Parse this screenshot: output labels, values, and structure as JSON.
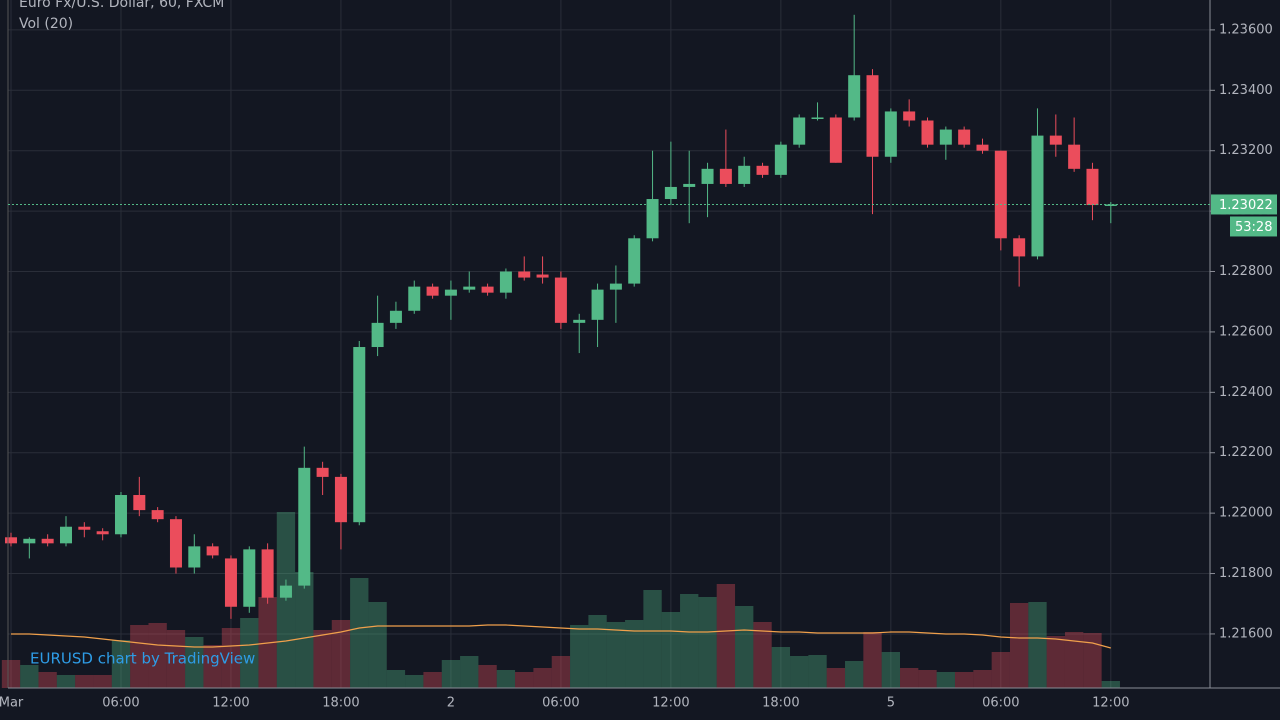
{
  "chart_data": {
    "type": "candlestick",
    "title": "Euro Fx/U.S. Dollar, 60, FXCM",
    "volume_title": "Vol (20)",
    "watermark": "EURUSD chart by TradingView",
    "categories": [
      "Mar",
      null,
      null,
      null,
      null,
      null,
      "06:00",
      null,
      null,
      null,
      null,
      null,
      "12:00",
      null,
      null,
      null,
      null,
      null,
      "18:00",
      null,
      null,
      null,
      null,
      null,
      "2",
      null,
      null,
      null,
      null,
      null,
      "06:00",
      null,
      null,
      null,
      null,
      null,
      "12:00",
      null,
      null,
      null,
      null,
      null,
      "18:00",
      null,
      null,
      null,
      null,
      null,
      "5",
      null,
      null,
      null,
      null,
      null,
      "06:00",
      null,
      null,
      null,
      null,
      null,
      "12:00"
    ],
    "open": [
      1.2192,
      1.219,
      1.21915,
      1.219,
      1.21955,
      1.2194,
      1.2193,
      1.2206,
      1.2201,
      1.2198,
      1.2182,
      1.2189,
      1.2185,
      1.2169,
      1.2188,
      1.2172,
      1.2176,
      1.2215,
      1.2212,
      1.2197,
      1.2255,
      1.2263,
      1.2267,
      1.2275,
      1.2272,
      1.2274,
      1.2275,
      1.2273,
      1.228,
      1.2279,
      1.2278,
      1.2263,
      1.2264,
      1.2274,
      1.2276,
      1.2291,
      1.2304,
      1.2308,
      1.2309,
      1.2314,
      1.2309,
      1.2315,
      1.2312,
      1.2322,
      1.23305,
      1.2331,
      1.2331,
      1.2345,
      1.2318,
      1.2333,
      1.233,
      1.2322,
      1.2327,
      1.2322,
      1.232,
      1.2291,
      1.2285,
      1.2325,
      1.2322,
      1.2314,
      1.2302
    ],
    "high": [
      1.21935,
      1.2192,
      1.2193,
      1.2199,
      1.2197,
      1.2195,
      1.2207,
      1.2212,
      1.2202,
      1.2199,
      1.2193,
      1.219,
      1.2186,
      1.2189,
      1.219,
      1.2178,
      1.2222,
      1.2217,
      1.2213,
      1.2257,
      1.2272,
      1.227,
      1.2277,
      1.2276,
      1.2277,
      1.228,
      1.2276,
      1.2281,
      1.2285,
      1.2285,
      1.228,
      1.2266,
      1.2276,
      1.2282,
      1.2292,
      1.232,
      1.2323,
      1.232,
      1.2316,
      1.2327,
      1.2318,
      1.2316,
      1.2323,
      1.2332,
      1.2336,
      1.2332,
      1.2365,
      1.2347,
      1.2334,
      1.2337,
      1.2331,
      1.2328,
      1.2328,
      1.2324,
      1.232,
      1.2292,
      1.2334,
      1.2332,
      1.2331,
      1.2316,
      1.2303
    ],
    "low": [
      1.2189,
      1.2185,
      1.2189,
      1.2189,
      1.2192,
      1.2191,
      1.2192,
      1.2199,
      1.2197,
      1.218,
      1.218,
      1.2185,
      1.2165,
      1.2167,
      1.217,
      1.2171,
      1.2175,
      1.2206,
      1.2188,
      1.2196,
      1.2252,
      1.2261,
      1.2266,
      1.2271,
      1.2264,
      1.2273,
      1.2272,
      1.2271,
      1.2277,
      1.2276,
      1.2261,
      1.2253,
      1.2255,
      1.2263,
      1.2275,
      1.229,
      1.2302,
      1.2296,
      1.2298,
      1.2308,
      1.2308,
      1.2311,
      1.2311,
      1.2321,
      1.233,
      1.2316,
      1.233,
      1.2299,
      1.2316,
      1.2328,
      1.2321,
      1.2317,
      1.2321,
      1.2319,
      1.2287,
      1.2275,
      1.2284,
      1.2318,
      1.2313,
      1.2297,
      1.2296
    ],
    "close": [
      1.219,
      1.21915,
      1.219,
      1.21955,
      1.21945,
      1.2193,
      1.2206,
      1.2201,
      1.2198,
      1.2182,
      1.2189,
      1.2186,
      1.2169,
      1.2188,
      1.2172,
      1.2176,
      1.2215,
      1.2212,
      1.2197,
      1.2255,
      1.2263,
      1.2267,
      1.2275,
      1.2272,
      1.2274,
      1.2275,
      1.2273,
      1.228,
      1.2278,
      1.2278,
      1.2263,
      1.2264,
      1.2274,
      1.2276,
      1.2291,
      1.2304,
      1.2308,
      1.2309,
      1.2314,
      1.2309,
      1.2315,
      1.2312,
      1.2322,
      1.2331,
      1.2331,
      1.2316,
      1.2345,
      1.2318,
      1.2333,
      1.233,
      1.2322,
      1.2327,
      1.2322,
      1.232,
      1.2291,
      1.2285,
      1.2325,
      1.2322,
      1.2314,
      1.2302,
      1.23022
    ],
    "volume": [
      28,
      23,
      16,
      13,
      13,
      13,
      48,
      63,
      65,
      58,
      51,
      43,
      60,
      70,
      91,
      176,
      116,
      58,
      68,
      110,
      86,
      18,
      13,
      16,
      28,
      32,
      23,
      18,
      16,
      20,
      32,
      63,
      73,
      66,
      68,
      98,
      76,
      94,
      91,
      104,
      82,
      66,
      41,
      32,
      33,
      20,
      27,
      56,
      36,
      20,
      18,
      16,
      16,
      18,
      36,
      85,
      86,
      52,
      56,
      55,
      7
    ],
    "volume_ma": [
      54,
      54,
      53,
      52,
      51,
      49,
      47,
      45,
      43,
      42,
      41,
      41,
      42,
      43,
      45,
      47,
      50,
      53,
      56,
      60,
      62,
      62,
      62,
      62,
      62,
      62,
      63,
      63,
      62,
      61,
      60,
      59,
      59,
      58,
      57,
      57,
      57,
      56,
      56,
      57,
      58,
      57,
      56,
      56,
      55,
      55,
      55,
      55,
      56,
      56,
      55,
      54,
      54,
      53,
      51,
      50,
      50,
      49,
      47,
      45,
      40
    ],
    "up_color": "#53b987",
    "down_color": "#eb4d5c",
    "ma_color": "#f0a04b",
    "ylim": [
      1.21421,
      1.23699
    ],
    "yticks": [
      {
        "value": 1.236,
        "label": "1.23600"
      },
      {
        "value": 1.234,
        "label": "1.23400"
      },
      {
        "value": 1.232,
        "label": "1.23200"
      },
      {
        "value": 1.23,
        "label": "1.23000"
      },
      {
        "value": 1.228,
        "label": "1.22800"
      },
      {
        "value": 1.226,
        "label": "1.22600"
      },
      {
        "value": 1.224,
        "label": "1.22400"
      },
      {
        "value": 1.222,
        "label": "1.22200"
      },
      {
        "value": 1.22,
        "label": "1.22000"
      },
      {
        "value": 1.218,
        "label": "1.21800"
      },
      {
        "value": 1.216,
        "label": "1.21600"
      }
    ],
    "last_price": {
      "value": 1.23022,
      "label": "1.23022"
    },
    "countdown": "53:28",
    "grid": true
  }
}
